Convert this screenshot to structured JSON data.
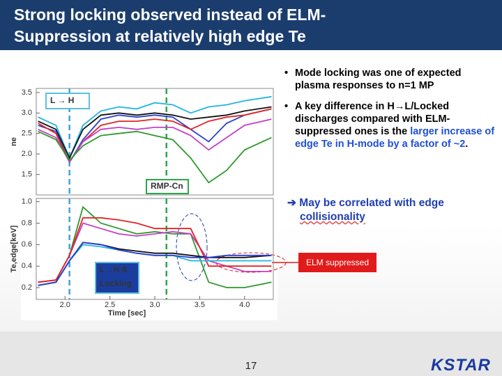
{
  "slide": {
    "title_lines": [
      "Strong locking observed instead of ELM-",
      "Suppression at relatively high edge Te"
    ],
    "bullets": [
      [
        {
          "text": "Mode locking was one of expected plasma responses to n=1 MP",
          "color": "#000000"
        }
      ],
      [
        {
          "text": "A key difference in H→L/Locked discharges compared with ELM-suppressed ones is the ",
          "color": "#000000"
        },
        {
          "text": "larger increase of edge Te in H-mode by a factor of ~2",
          "color": "#1f4fd8"
        },
        {
          "text": ".",
          "color": "#000000"
        }
      ]
    ],
    "conclusion": [
      "➔ May be correlated with edge",
      "collisionality"
    ],
    "callout": "ELM suppressed",
    "page_number": "17",
    "logo": "KSTAR"
  },
  "chart_data": [
    {
      "type": "line",
      "y_label": "ne",
      "x": [
        1.7,
        1.9,
        2.05,
        2.2,
        2.4,
        2.6,
        2.8,
        3.0,
        3.2,
        3.4,
        3.6,
        3.8,
        4.0,
        4.3
      ],
      "xlim": [
        1.68,
        4.32
      ],
      "ylim": [
        1.0,
        3.6
      ],
      "yticks": [
        1.5,
        {
          "value": 2,
          "label": "2.0"
        },
        2.5,
        {
          "value": 3,
          "label": "3.0"
        },
        3.5
      ],
      "vlines": [
        {
          "x": 2.05,
          "color": "#3fa3d8"
        },
        {
          "x": 3.13,
          "color": "#2aa84a"
        }
      ],
      "annotations": [
        "L → H",
        "RMP-Cn"
      ],
      "series": [
        {
          "color": "#1fb5e0",
          "values": [
            2.9,
            2.7,
            1.9,
            2.7,
            3.05,
            3.15,
            3.1,
            3.25,
            3.2,
            3.0,
            3.15,
            3.2,
            3.3,
            3.4
          ]
        },
        {
          "color": "#111111",
          "values": [
            2.8,
            2.6,
            1.9,
            2.6,
            2.95,
            3.0,
            2.95,
            3.0,
            2.95,
            2.85,
            2.9,
            2.95,
            3.05,
            3.15
          ]
        },
        {
          "color": "#2b3fd0",
          "values": [
            2.7,
            2.55,
            1.8,
            2.35,
            2.85,
            2.95,
            2.9,
            2.95,
            2.9,
            2.6,
            2.3,
            2.75,
            2.95,
            3.1
          ]
        },
        {
          "color": "#e02424",
          "values": [
            2.75,
            2.5,
            1.8,
            2.3,
            2.7,
            2.8,
            2.8,
            2.85,
            2.8,
            2.6,
            2.8,
            2.9,
            2.95,
            3.1
          ]
        },
        {
          "color": "#c53fc5",
          "values": [
            2.6,
            2.4,
            1.8,
            2.3,
            2.6,
            2.65,
            2.6,
            2.65,
            2.65,
            2.45,
            2.1,
            2.4,
            2.7,
            2.85
          ]
        },
        {
          "color": "#2d9a2d",
          "values": [
            2.55,
            2.35,
            1.85,
            2.2,
            2.45,
            2.5,
            2.55,
            2.45,
            2.35,
            1.9,
            1.3,
            1.6,
            2.1,
            2.4
          ]
        }
      ]
    },
    {
      "type": "line",
      "y_label": "Te,edge[keV]",
      "x_label": "Time [sec]",
      "x": [
        1.7,
        1.9,
        2.05,
        2.2,
        2.4,
        2.6,
        2.8,
        3.0,
        3.2,
        3.4,
        3.6,
        3.8,
        4.0,
        4.3
      ],
      "xlim": [
        1.68,
        4.32
      ],
      "xticks": [
        {
          "value": 2,
          "label": "2.0"
        },
        2.5,
        {
          "value": 3,
          "label": "3.0"
        },
        3.5,
        {
          "value": 4,
          "label": "4.0"
        }
      ],
      "ylim": [
        0.09,
        1.03
      ],
      "yticks": [
        0.2,
        0.4,
        0.6,
        0.8,
        {
          "value": 1,
          "label": "1.0"
        }
      ],
      "vlines": [
        {
          "x": 2.05,
          "color": "#3fa3d8"
        },
        {
          "x": 3.13,
          "color": "#2aa84a"
        }
      ],
      "annotations": [
        "L→H &",
        "Locking"
      ],
      "series": [
        {
          "color": "#2d9a2d",
          "values": [
            0.25,
            0.27,
            0.5,
            0.95,
            0.8,
            0.75,
            0.7,
            0.72,
            0.7,
            0.7,
            0.25,
            0.2,
            0.2,
            0.25
          ]
        },
        {
          "color": "#c53fc5",
          "values": [
            0.25,
            0.27,
            0.5,
            0.8,
            0.75,
            0.7,
            0.68,
            0.7,
            0.72,
            0.7,
            0.45,
            0.4,
            0.35,
            0.35
          ]
        },
        {
          "color": "#e02424",
          "values": [
            0.25,
            0.27,
            0.5,
            0.85,
            0.85,
            0.83,
            0.8,
            0.75,
            0.75,
            0.75,
            0.4,
            0.4,
            0.4,
            0.4
          ]
        },
        {
          "color": "#1fb5e0",
          "values": [
            0.22,
            0.25,
            0.45,
            0.6,
            0.58,
            0.55,
            0.52,
            0.5,
            0.5,
            0.45,
            0.45,
            0.45,
            0.45,
            0.45
          ]
        },
        {
          "color": "#111111",
          "values": [
            0.22,
            0.25,
            0.45,
            0.62,
            0.6,
            0.56,
            0.54,
            0.52,
            0.52,
            0.5,
            0.48,
            0.48,
            0.48,
            0.5
          ]
        },
        {
          "color": "#2b3fd0",
          "values": [
            0.22,
            0.25,
            0.45,
            0.62,
            0.6,
            0.55,
            0.52,
            0.5,
            0.5,
            0.48,
            0.48,
            0.5,
            0.5,
            0.5
          ]
        }
      ]
    }
  ]
}
